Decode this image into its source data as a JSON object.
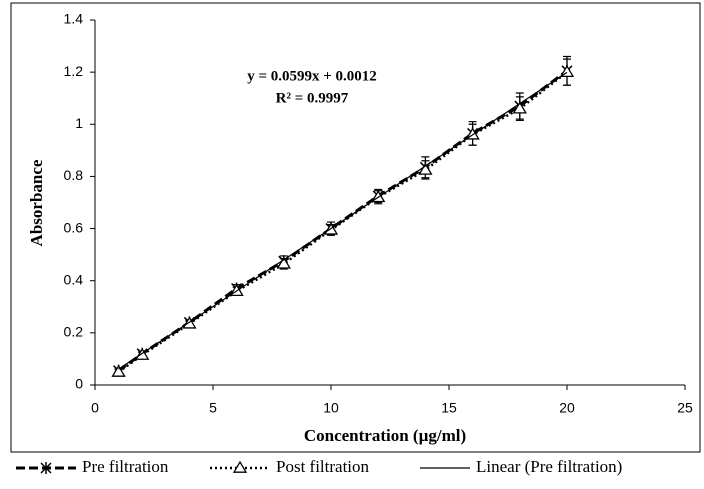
{
  "chart_data": {
    "type": "scatter-line",
    "annotations": [
      "y = 0.0599x + 0.0012",
      "R² = 0.9997"
    ],
    "x_label": "Concentration  (µg/ml)",
    "y_label": "Absorbance",
    "x": [
      1,
      2,
      4,
      6,
      8,
      10,
      12,
      14,
      16,
      18,
      20
    ],
    "series": [
      {
        "name": "Pre filtration",
        "color": "#000000",
        "style": "dashed",
        "marker": "star",
        "values": [
          0.055,
          0.12,
          0.24,
          0.37,
          0.475,
          0.6,
          0.725,
          0.835,
          0.965,
          1.07,
          1.205
        ],
        "errors": [
          0.01,
          0.01,
          0.01,
          0.015,
          0.02,
          0.025,
          0.025,
          0.04,
          0.045,
          0.05,
          0.055
        ]
      },
      {
        "name": "Post filtration",
        "color": "#000000",
        "style": "dotted",
        "marker": "triangle",
        "values": [
          0.05,
          0.115,
          0.235,
          0.36,
          0.465,
          0.595,
          0.72,
          0.825,
          0.96,
          1.06,
          1.2
        ],
        "errors": [
          0.01,
          0.01,
          0.01,
          0.015,
          0.02,
          0.02,
          0.025,
          0.035,
          0.04,
          0.045,
          0.05
        ]
      },
      {
        "name": "Linear (Pre filtration)",
        "color": "#000000",
        "style": "solid",
        "marker": "none",
        "x": [
          1,
          20
        ],
        "values": [
          0.0611,
          1.1992
        ]
      }
    ],
    "xlim": [
      0,
      25
    ],
    "xticks": [
      0,
      5,
      10,
      15,
      20,
      25
    ],
    "ylim": [
      0,
      1.4
    ],
    "yticks": [
      0,
      0.2,
      0.4,
      0.6,
      0.8,
      1,
      1.2,
      1.4
    ],
    "legend": "bottom"
  }
}
